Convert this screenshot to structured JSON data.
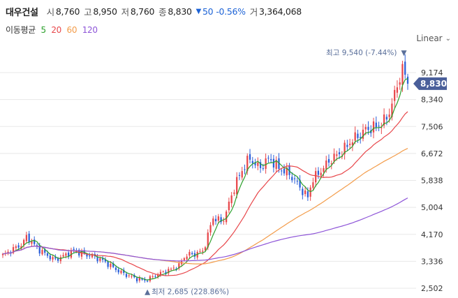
{
  "header": {
    "name": "대우건설",
    "open_label": "시",
    "open": "8,760",
    "high_label": "고",
    "high": "8,950",
    "low_label": "저",
    "low": "8,760",
    "close_label": "종",
    "close": "8,830",
    "change_arrow": "▼",
    "change": "50",
    "change_pct": "-0.56%",
    "volume_label": "거",
    "volume": "3,364,068"
  },
  "ma_legend": {
    "label": "이동평균",
    "items": [
      {
        "period": "5",
        "color": "#2ca02c"
      },
      {
        "period": "20",
        "color": "#e8474b"
      },
      {
        "period": "60",
        "color": "#f39c4a"
      },
      {
        "period": "120",
        "color": "#8e55d8"
      }
    ]
  },
  "scale_toggle": {
    "label": "Linear",
    "icon": "chevron-down-icon"
  },
  "colors": {
    "up": "#e8474b",
    "down": "#2b5fd9",
    "price_tag": "#4a5f9a",
    "annotation": "#5a6f9a",
    "grid": "#e8e8e8"
  },
  "chart_data": {
    "type": "candlestick",
    "y_scale": "linear",
    "ylim": [
      2300,
      10000
    ],
    "y_ticks": [
      "9,174",
      "8,340",
      "7,506",
      "6,672",
      "5,838",
      "5,004",
      "4,170",
      "3,336",
      "2,502"
    ],
    "y_tick_values": [
      9174,
      8340,
      7506,
      6672,
      5838,
      5004,
      4170,
      3336,
      2502
    ],
    "last_price": {
      "value": 8830,
      "label": "8,830"
    },
    "high_annotation": {
      "value": 9540,
      "label_prefix": "최고",
      "label": "9,540 (-7.44%)",
      "marker": "▼"
    },
    "low_annotation": {
      "value": 2685,
      "label_prefix": "최저",
      "label": "2,685 (228.86%)",
      "marker": "▲"
    },
    "close_path": [
      3520,
      3600,
      3700,
      3780,
      3850,
      4100,
      3950,
      3780,
      3650,
      3560,
      3450,
      3380,
      3450,
      3520,
      3600,
      3680,
      3600,
      3560,
      3520,
      3480,
      3420,
      3360,
      3260,
      3160,
      3060,
      2980,
      2910,
      2860,
      2800,
      2760,
      2740,
      2820,
      2900,
      2960,
      3020,
      3060,
      3140,
      3200,
      3450,
      3560,
      3540,
      3600,
      3650,
      4100,
      4680,
      4650,
      4520,
      4900,
      5350,
      5800,
      6050,
      6400,
      6500,
      6350,
      6200,
      6420,
      6500,
      6380,
      6200,
      6150,
      6050,
      5900,
      5700,
      5500,
      5300,
      5880,
      6000,
      6180,
      6350,
      6500,
      6600,
      6700,
      6850,
      7050,
      7150,
      7250,
      7400,
      7450,
      7480,
      7550,
      7650,
      7900,
      8350,
      8900,
      9300,
      8830
    ],
    "candle_count": 155,
    "ma_series": [
      {
        "name": "5",
        "color": "#2ca02c"
      },
      {
        "name": "20",
        "color": "#e8474b"
      },
      {
        "name": "60",
        "color": "#f39c4a"
      },
      {
        "name": "120",
        "color": "#8e55d8"
      }
    ]
  }
}
